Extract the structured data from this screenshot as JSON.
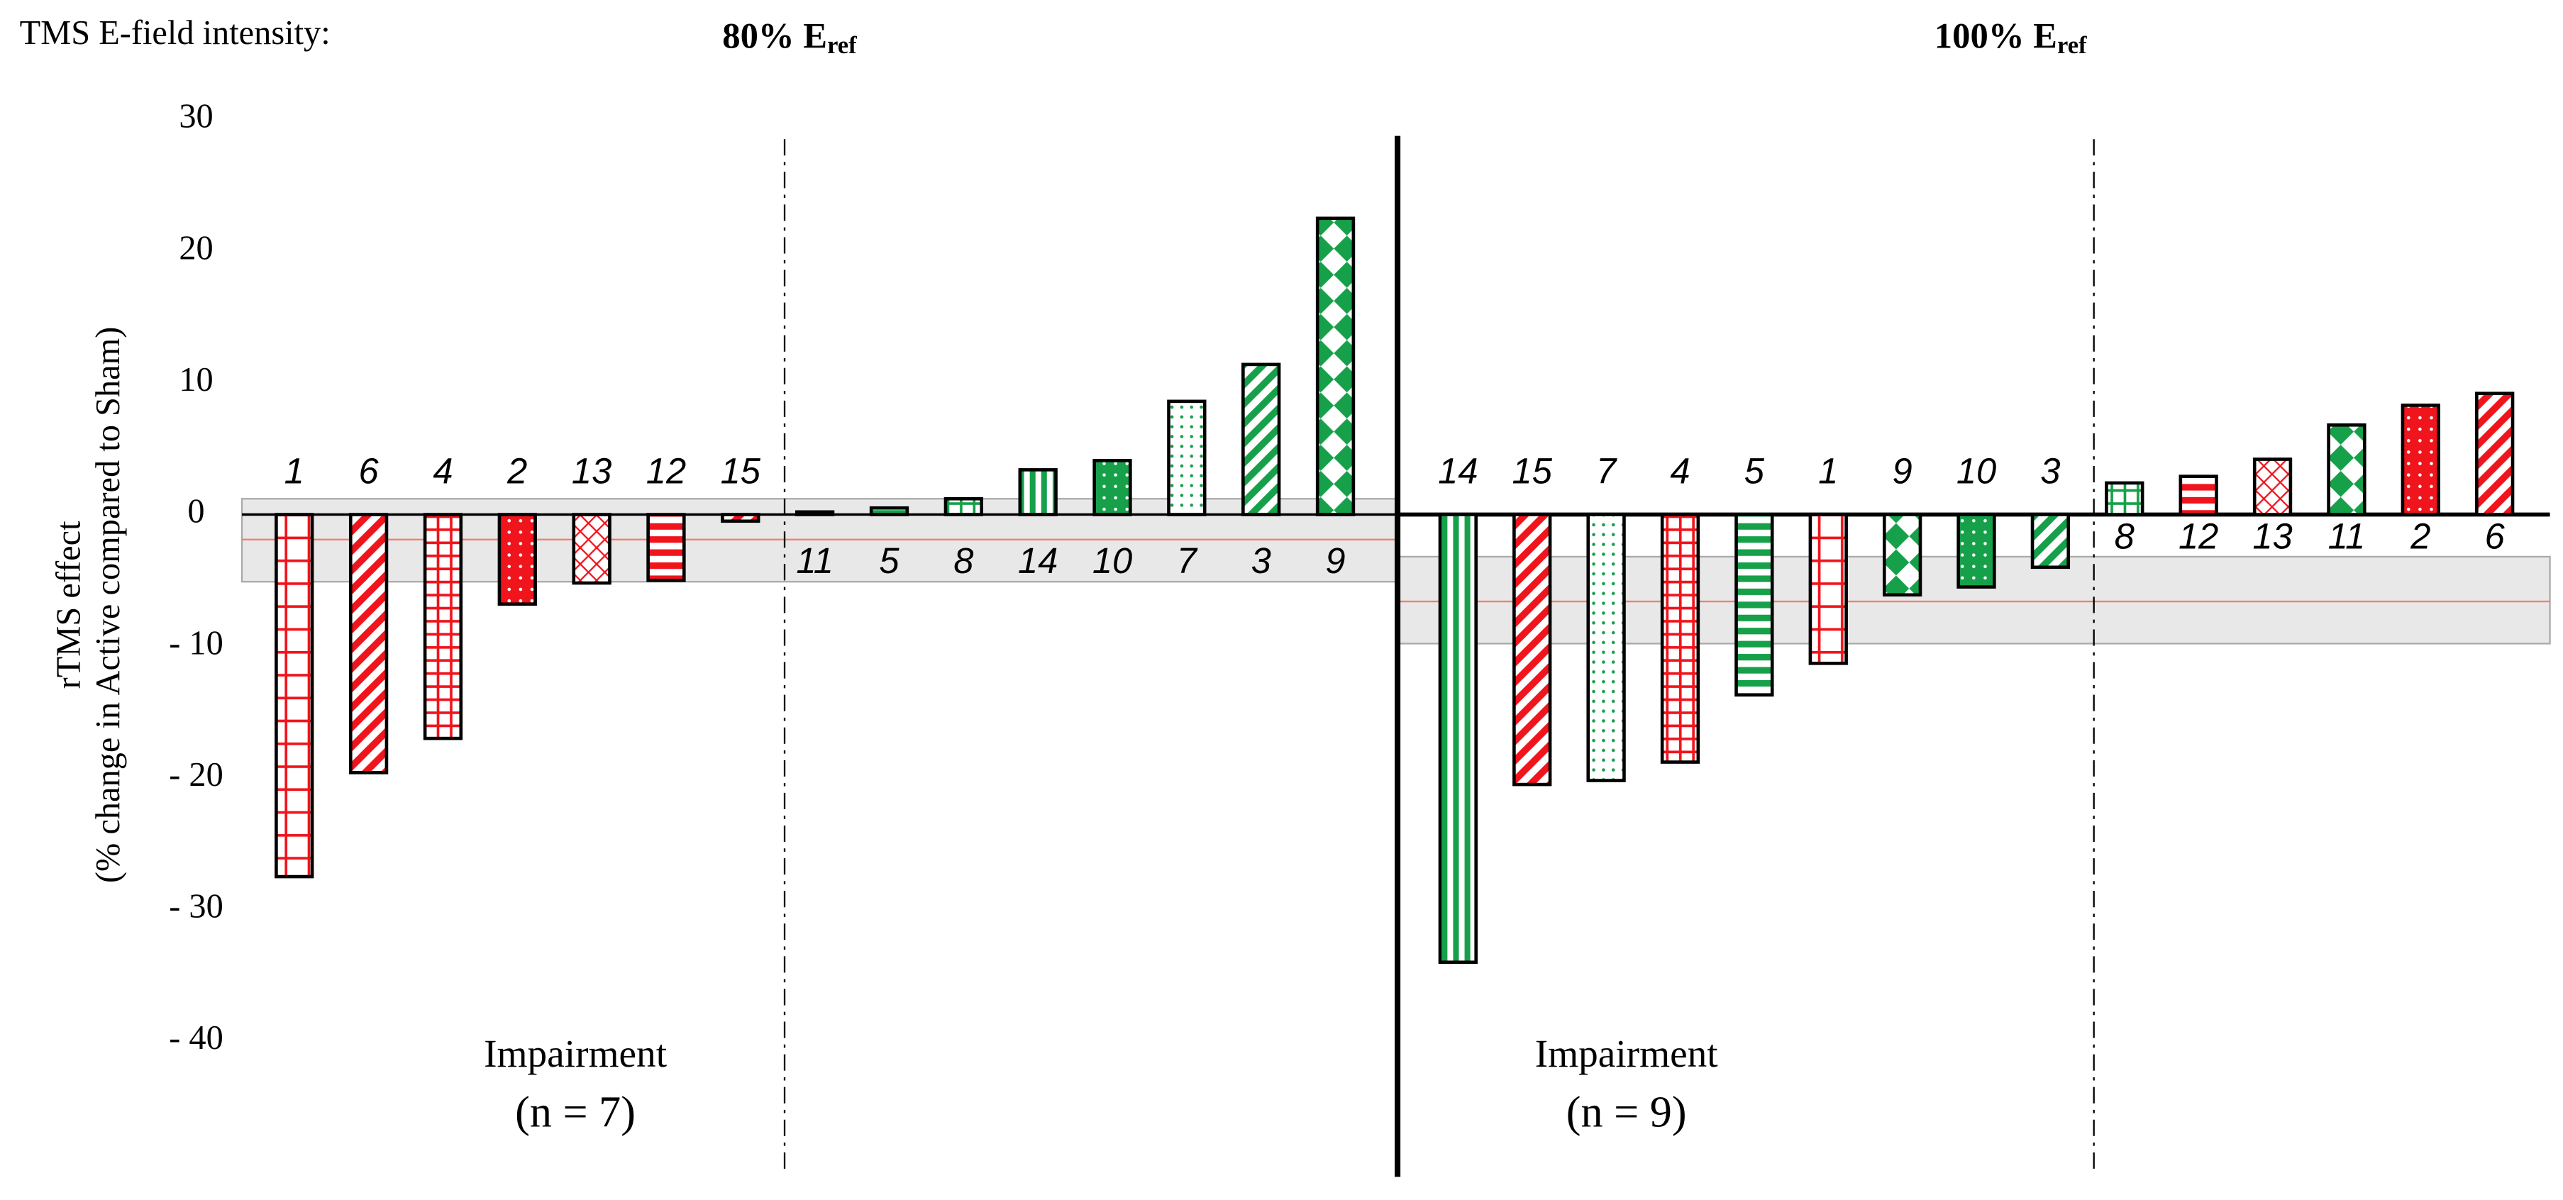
{
  "chart_data": [
    {
      "type": "bar",
      "header": "TMS E-field intensity:",
      "title": "80% E",
      "title_sub": "ref",
      "ylabel": [
        "rTMS effect",
        "(% change in Active compared to Sham)"
      ],
      "ylim": [
        -40,
        30
      ],
      "yticks": [
        {
          "value": -40,
          "label": "- 40"
        },
        {
          "value": -30,
          "label": "- 30"
        },
        {
          "value": -20,
          "label": "- 20"
        },
        {
          "value": -10,
          "label": "- 10"
        },
        0,
        10,
        20,
        30
      ],
      "categories": [
        "1",
        "6",
        "4",
        "2",
        "13",
        "12",
        "15",
        "11",
        "5",
        "8",
        "14",
        "10",
        "7",
        "3",
        "9"
      ],
      "values": [
        -27.5,
        -19.6,
        -17.0,
        -6.8,
        -5.2,
        -5.0,
        -0.5,
        0.2,
        0.5,
        1.2,
        3.4,
        4.1,
        8.6,
        11.4,
        22.5
      ],
      "colors": [
        "#f0141c",
        "#f0141c",
        "#f0141c",
        "#f0141c",
        "#f0141c",
        "#f0141c",
        "#f0141c",
        "#16a04a",
        "#16a04a",
        "#16a04a",
        "#16a04a",
        "#16a04a",
        "#16a04a",
        "#16a04a",
        "#16a04a"
      ],
      "patterns": [
        "grid",
        "diag",
        "smallgrid",
        "dots",
        "cross",
        "hstripes",
        "diag",
        "diamonds",
        "hstripes",
        "smallgrid",
        "vstripes",
        "dots",
        "smalldots",
        "diag",
        "diamonds"
      ],
      "mean": -1.9,
      "band": [
        -5.1,
        1.2
      ],
      "annotation": [
        "Impairment",
        "(n = 7)"
      ]
    },
    {
      "type": "bar",
      "title": "100% E",
      "title_sub": "ref",
      "ylim": [
        -40,
        30
      ],
      "categories": [
        "14",
        "15",
        "7",
        "4",
        "5",
        "1",
        "9",
        "10",
        "3",
        "8",
        "12",
        "13",
        "11",
        "2",
        "6"
      ],
      "values": [
        -34.0,
        -20.5,
        -20.2,
        -18.8,
        -13.7,
        -11.3,
        -6.1,
        -5.5,
        -4.0,
        2.4,
        2.9,
        4.2,
        6.8,
        8.3,
        9.2
      ],
      "colors": [
        "#16a04a",
        "#f0141c",
        "#16a04a",
        "#f0141c",
        "#16a04a",
        "#f0141c",
        "#16a04a",
        "#16a04a",
        "#16a04a",
        "#16a04a",
        "#f0141c",
        "#f0141c",
        "#16a04a",
        "#f0141c",
        "#f0141c"
      ],
      "patterns": [
        "vstripes",
        "diag",
        "smalldots",
        "smallgrid",
        "hstripes",
        "grid",
        "diamonds",
        "dots",
        "diag",
        "smallgrid",
        "hstripes",
        "cross",
        "diamonds",
        "dots",
        "diag"
      ],
      "mean": -6.6,
      "band": [
        -9.8,
        -3.2
      ],
      "annotation": [
        "Impairment",
        "(n = 9)"
      ]
    }
  ]
}
